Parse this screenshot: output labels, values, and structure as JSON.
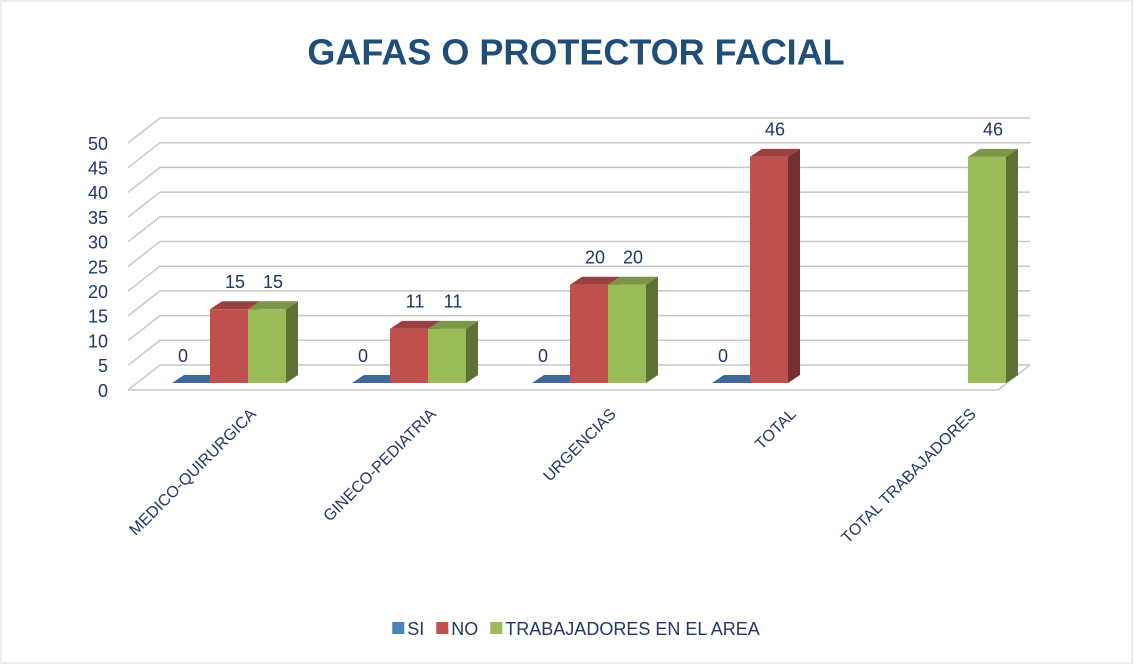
{
  "chart_data": {
    "type": "bar",
    "title": "GAFAS O PROTECTOR FACIAL",
    "categories": [
      "MEDICO-QUIRURGICA",
      "GINECO-PEDIATRIA",
      "URGENCIAS",
      "TOTAL",
      "TOTAL TRABAJADORES"
    ],
    "series": [
      {
        "name": "SI",
        "color": "#4f81bd",
        "values": [
          0,
          0,
          0,
          0,
          null
        ]
      },
      {
        "name": "NO",
        "color": "#c0504d",
        "values": [
          15,
          11,
          20,
          46,
          null
        ]
      },
      {
        "name": "TRABAJADORES EN EL AREA",
        "color": "#9bbb59",
        "values": [
          15,
          11,
          20,
          null,
          46
        ]
      }
    ],
    "ylim": [
      0,
      50
    ],
    "yticks": [
      0,
      5,
      10,
      15,
      20,
      25,
      30,
      35,
      40,
      45,
      50
    ],
    "grid": true,
    "legend": "bottom"
  }
}
